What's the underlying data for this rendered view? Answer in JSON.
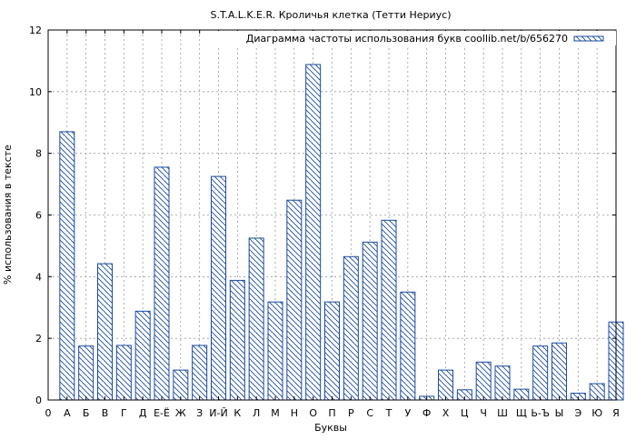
{
  "chart_data": {
    "type": "bar",
    "title": "S.T.A.L.K.E.R. Кроличья клетка (Тетти Нериус)",
    "xlabel": "Буквы",
    "ylabel": "% использования в тексте",
    "ylim": [
      0,
      12
    ],
    "y_ticks": [
      "0",
      "2",
      "4",
      "6",
      "8",
      "10",
      "12"
    ],
    "x_tick_start_label": "0",
    "grid": true,
    "legend_position": "top-right",
    "series": [
      {
        "name": "Диаграмма частоты использования букв coollib.net/b/656270",
        "color": "#1a4aa0",
        "pattern": "diagonal-hatch"
      }
    ],
    "categories": [
      "А",
      "Б",
      "В",
      "Г",
      "Д",
      "Е-Ё",
      "Ж",
      "З",
      "И-Й",
      "К",
      "Л",
      "М",
      "Н",
      "О",
      "П",
      "Р",
      "С",
      "Т",
      "У",
      "Ф",
      "Х",
      "Ц",
      "Ч",
      "Ш",
      "Щ",
      "Ь-Ъ",
      "Ы",
      "Э",
      "Ю",
      "Я"
    ],
    "values": [
      8.7,
      1.75,
      4.42,
      1.77,
      2.88,
      7.55,
      0.97,
      1.77,
      7.25,
      3.88,
      5.25,
      3.18,
      6.48,
      10.88,
      3.18,
      4.65,
      5.12,
      5.83,
      3.5,
      0.12,
      0.97,
      0.33,
      1.23,
      1.1,
      0.35,
      1.75,
      1.85,
      0.22,
      0.53,
      2.53
    ]
  }
}
